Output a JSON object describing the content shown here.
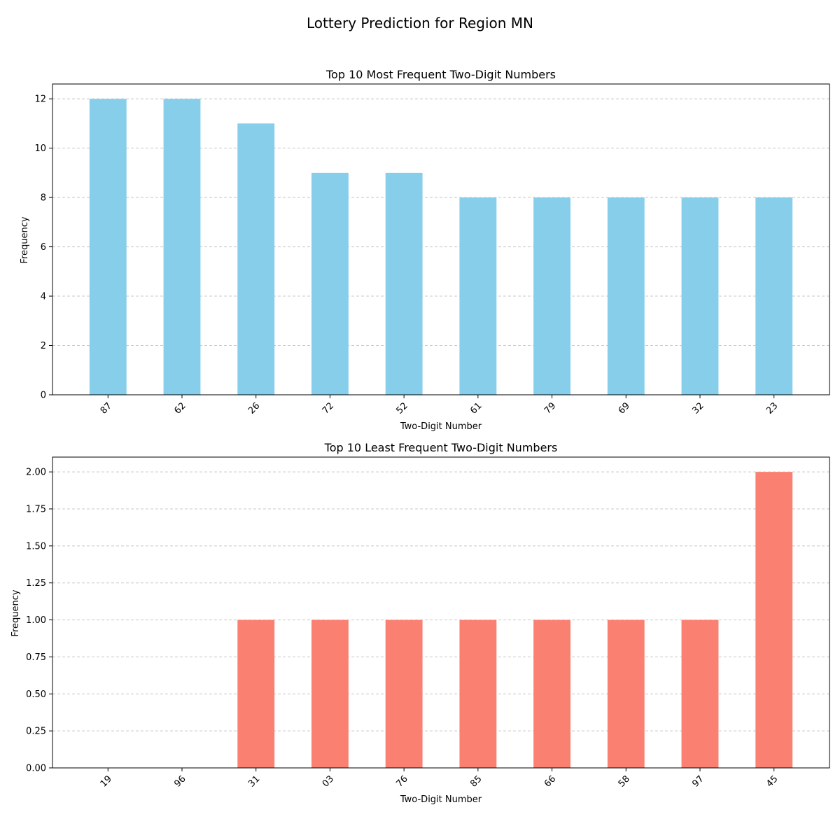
{
  "figure": {
    "suptitle": "Lottery Prediction for Region MN"
  },
  "chart_data": [
    {
      "type": "bar",
      "title": "Top 10 Most Frequent Two-Digit Numbers",
      "xlabel": "Two-Digit Number",
      "ylabel": "Frequency",
      "categories": [
        "87",
        "62",
        "26",
        "72",
        "52",
        "61",
        "79",
        "69",
        "32",
        "23"
      ],
      "values": [
        12,
        12,
        11,
        9,
        9,
        8,
        8,
        8,
        8,
        8
      ],
      "ylim": [
        0,
        12.6
      ],
      "yticks": [
        0,
        2,
        4,
        6,
        8,
        10,
        12
      ],
      "ytick_labels": [
        "0",
        "2",
        "4",
        "6",
        "8",
        "10",
        "12"
      ],
      "grid": "y-dashed",
      "color": "#87ceeb"
    },
    {
      "type": "bar",
      "title": "Top 10 Least Frequent Two-Digit Numbers",
      "xlabel": "Two-Digit Number",
      "ylabel": "Frequency",
      "categories": [
        "19",
        "96",
        "31",
        "03",
        "76",
        "85",
        "66",
        "58",
        "97",
        "45"
      ],
      "values": [
        0,
        0,
        1,
        1,
        1,
        1,
        1,
        1,
        1,
        2
      ],
      "ylim": [
        0,
        2.1
      ],
      "yticks": [
        0,
        0.25,
        0.5,
        0.75,
        1.0,
        1.25,
        1.5,
        1.75,
        2.0
      ],
      "ytick_labels": [
        "0.00",
        "0.25",
        "0.50",
        "0.75",
        "1.00",
        "1.25",
        "1.50",
        "1.75",
        "2.00"
      ],
      "grid": "y-dashed",
      "color": "#fa8072"
    }
  ]
}
